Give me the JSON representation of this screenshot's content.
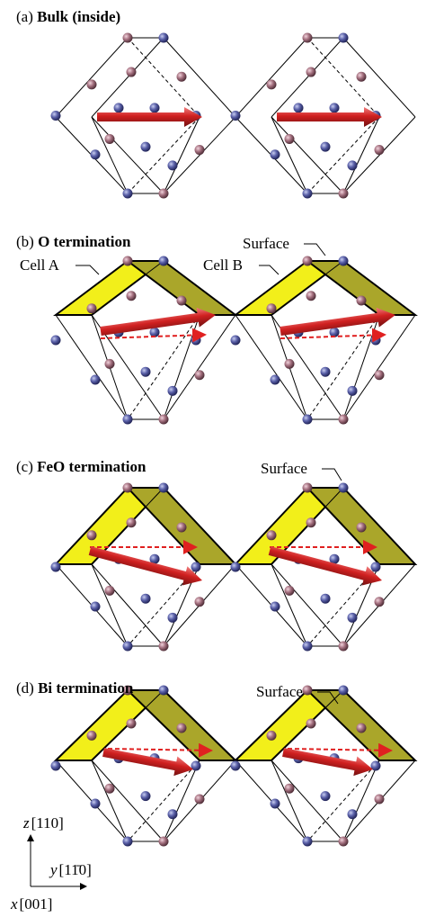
{
  "panels": [
    {
      "label": "(a)",
      "title": "Bulk (inside)"
    },
    {
      "label": "(b)",
      "title": "O termination",
      "surface": "Surface",
      "cells": [
        "Cell A",
        "Cell B"
      ]
    },
    {
      "label": "(c)",
      "title": "FeO termination",
      "surface": "Surface"
    },
    {
      "label": "(d)",
      "title": "Bi termination",
      "surface": "Surface"
    }
  ],
  "axes": {
    "z": {
      "name": "z",
      "dir": "[110]"
    },
    "y": {
      "name": "y",
      "dir": "[11̄0]"
    },
    "x": {
      "name": "x",
      "dir": "[001]"
    }
  }
}
